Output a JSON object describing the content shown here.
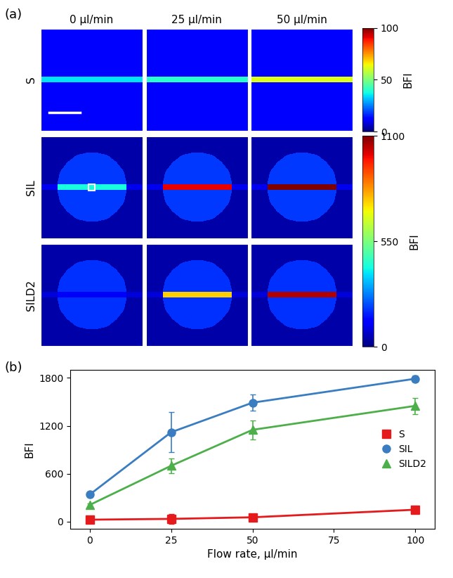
{
  "chart_data": [
    {
      "type": "image_grid",
      "title": "(a)",
      "columns": [
        "0 µl/min",
        "25 µl/min",
        "50 µl/min"
      ],
      "rows": [
        "S",
        "SIL",
        "SILD2"
      ],
      "colorbar_of_row": [
        0,
        1,
        1
      ],
      "colorbars": [
        {
          "label": "BFI",
          "range": [
            0,
            100
          ],
          "ticks": [
            0,
            50,
            100
          ]
        },
        {
          "label": "BFI",
          "range": [
            0,
            1100
          ],
          "ticks": [
            0,
            550,
            1100
          ]
        }
      ],
      "outside_bfi": [
        [
          12,
          12,
          12
        ],
        [
          40,
          40,
          40
        ],
        [
          40,
          40,
          40
        ]
      ],
      "lens_bfi": [
        [
          null,
          null,
          null
        ],
        [
          200,
          200,
          200
        ],
        [
          190,
          190,
          190
        ]
      ],
      "channel_bfi": [
        [
          35,
          40,
          62
        ],
        [
          420,
          1000,
          1100
        ],
        [
          120,
          760,
          1050
        ]
      ],
      "channel_outside_bfi": [
        [
          35,
          40,
          62
        ],
        [
          110,
          110,
          110
        ],
        [
          90,
          90,
          90
        ]
      ]
    },
    {
      "type": "line",
      "title": "(b)",
      "x_label": "Flow rate, µl/min",
      "y_label": "BFI",
      "x": [
        0,
        25,
        50,
        100
      ],
      "xlim": [
        -6,
        106
      ],
      "xticks": [
        0,
        25,
        50,
        75,
        100
      ],
      "ylim": [
        -90,
        1900
      ],
      "yticks": [
        0,
        600,
        1200,
        1800
      ],
      "legend": "center right",
      "series": [
        {
          "name": "S",
          "color": "#e41a1c",
          "marker": "square",
          "values": [
            25,
            35,
            55,
            150
          ],
          "error": [
            10,
            60,
            20,
            15
          ]
        },
        {
          "name": "SIL",
          "color": "#3a7dc0",
          "marker": "circle",
          "values": [
            340,
            1120,
            1490,
            1790
          ],
          "error": [
            30,
            250,
            100,
            40
          ]
        },
        {
          "name": "SILD2",
          "color": "#4daf4a",
          "marker": "triangle",
          "values": [
            210,
            700,
            1150,
            1450
          ],
          "error": [
            20,
            90,
            120,
            100
          ]
        }
      ]
    }
  ]
}
